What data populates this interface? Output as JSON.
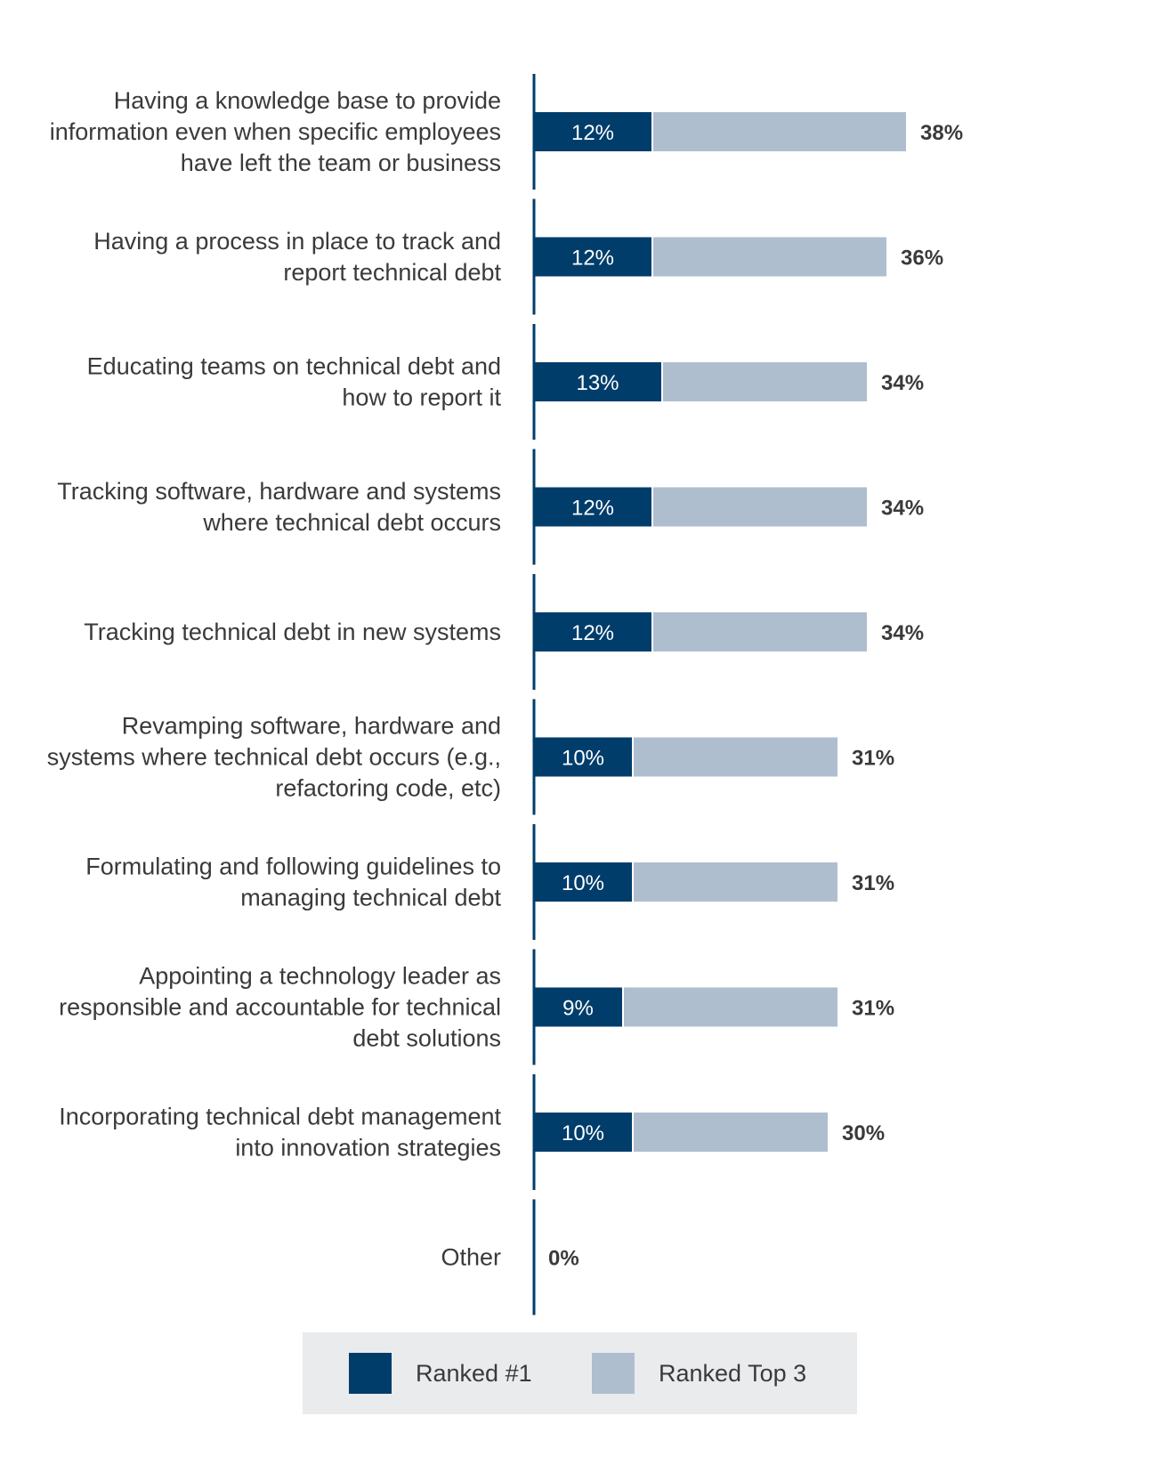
{
  "chart_data": {
    "type": "bar",
    "orientation": "horizontal",
    "stacked": false,
    "categories": [
      "Having a knowledge base to provide information even when specific employees have left the team or business",
      "Having a process in place to track and report technical debt",
      "Educating teams on technical debt and how to report it",
      "Tracking software, hardware and systems where technical debt occurs",
      "Tracking technical debt in new systems",
      "Revamping software, hardware and systems where technical debt occurs (e.g., refactoring code, etc)",
      "Formulating and following guidelines to managing technical debt",
      "Appointing a technology leader as responsible and accountable for technical debt solutions",
      "Incorporating technical debt management into innovation strategies",
      "Other"
    ],
    "category_lines": [
      [
        "Having a knowledge base to provide",
        "information even when specific employees",
        "have left the team or business"
      ],
      [
        "Having a process in place to track and",
        "report technical debt"
      ],
      [
        "Educating teams on technical debt and",
        "how to report it"
      ],
      [
        "Tracking software, hardware and systems",
        "where technical debt occurs"
      ],
      [
        "Tracking technical debt in new systems"
      ],
      [
        "Revamping software, hardware and",
        "systems where technical debt occurs (e.g.,",
        "refactoring code, etc)"
      ],
      [
        "Formulating and following guidelines to",
        "managing technical debt"
      ],
      [
        "Appointing a technology leader as",
        "responsible and accountable for technical",
        "debt solutions"
      ],
      [
        "Incorporating technical debt management",
        "into innovation strategies"
      ],
      [
        "Other"
      ]
    ],
    "series": [
      {
        "name": "Ranked #1",
        "color": "#003d6b",
        "values": [
          12,
          12,
          13,
          12,
          12,
          10,
          10,
          9,
          10,
          0
        ],
        "labels": [
          "12%",
          "12%",
          "13%",
          "12%",
          "12%",
          "10%",
          "10%",
          "9%",
          "10%",
          ""
        ]
      },
      {
        "name": "Ranked Top 3",
        "color": "#aebecf",
        "values": [
          38,
          36,
          34,
          34,
          34,
          31,
          31,
          31,
          30,
          0
        ],
        "labels": [
          "38%",
          "36%",
          "34%",
          "34%",
          "34%",
          "31%",
          "31%",
          "31%",
          "30%",
          "0%"
        ]
      }
    ],
    "xlim": [
      0,
      38
    ],
    "grid": false,
    "legend_position": "bottom"
  },
  "colors": {
    "axis": "#003d6b",
    "text": "#3a3a3a",
    "legend_bg": "#e9ebed"
  }
}
